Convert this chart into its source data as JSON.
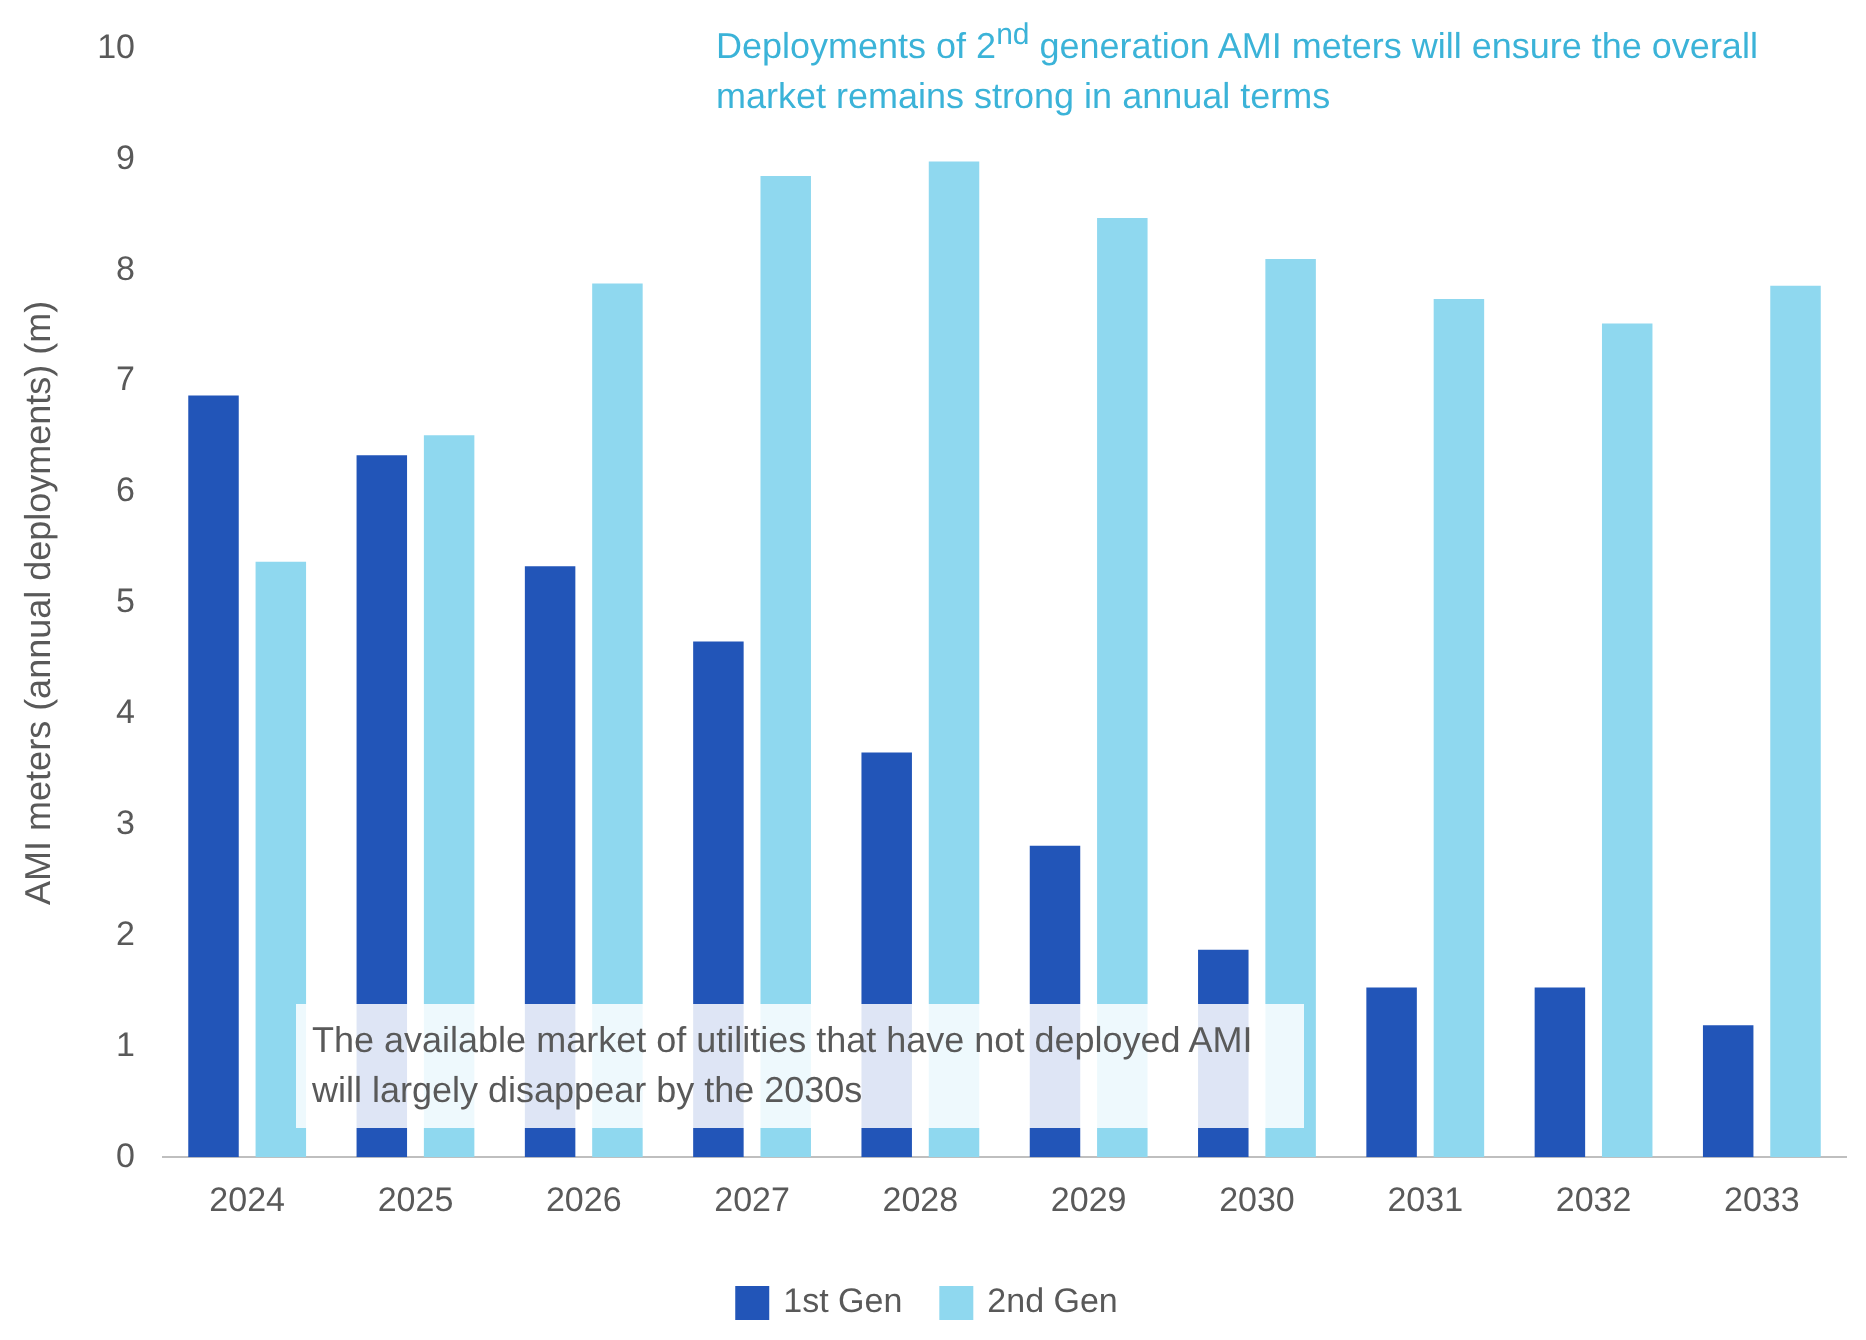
{
  "chart_data": {
    "type": "bar",
    "ylabel": "AMI meters (annual deployments) (m)",
    "categories": [
      "2024",
      "2025",
      "2026",
      "2027",
      "2028",
      "2029",
      "2030",
      "2031",
      "2032",
      "2033"
    ],
    "series": [
      {
        "name": "1st Gen",
        "color": "#2255b8",
        "values": [
          6.87,
          6.33,
          5.33,
          4.65,
          3.65,
          2.81,
          1.87,
          1.53,
          1.53,
          1.19
        ]
      },
      {
        "name": "2nd Gen",
        "color": "#8fd8ef",
        "values": [
          5.37,
          6.51,
          7.88,
          8.85,
          8.98,
          8.47,
          8.1,
          7.74,
          7.52,
          7.86
        ]
      }
    ],
    "ylim": [
      0,
      10
    ],
    "yticks": [
      0,
      1,
      2,
      3,
      4,
      5,
      6,
      7,
      8,
      9,
      10
    ],
    "grid": false,
    "legend": "bottom",
    "annotations": [
      "Deployments of 2$^{nd}$ generation AMI meters will ensure the overall market remains strong in annual terms",
      "The available market of utilities that have not deployed AMI will largely disappear by the 2030s"
    ]
  }
}
